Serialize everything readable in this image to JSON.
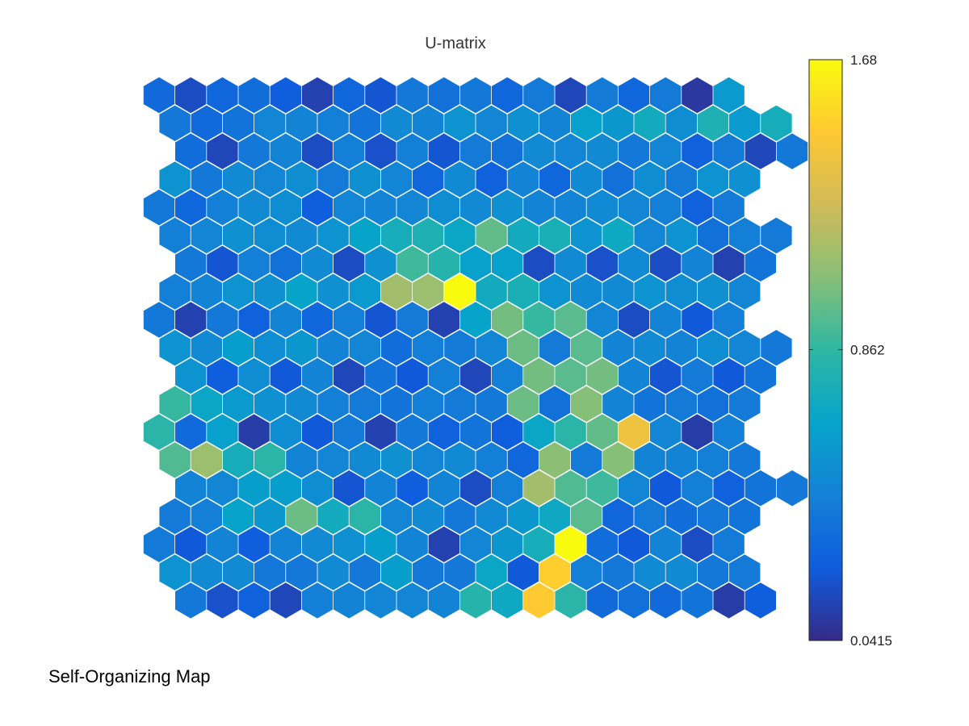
{
  "footer": {
    "title": "Self-Organizing Map"
  },
  "colormap": [
    "#352a87",
    "#0f5cdd",
    "#1481d6",
    "#06a4ca",
    "#2eb7a4",
    "#87bf77",
    "#d1bb59",
    "#fec832",
    "#f9fb0e"
  ],
  "chart_data": {
    "type": "heatmap",
    "title": "U-matrix",
    "grid": false,
    "layout": "hexagonal",
    "rows": 19,
    "cols": 20,
    "colorbar": {
      "position": "right",
      "min": 0.0415,
      "max": 1.68,
      "ticks": [
        {
          "value": 0.0415,
          "label": "0.0415"
        },
        {
          "value": 0.862,
          "label": "0.862"
        },
        {
          "value": 1.68,
          "label": "1.68"
        }
      ]
    },
    "values": [
      [
        0.32,
        0.18,
        0.3,
        0.34,
        0.26,
        0.14,
        0.3,
        0.22,
        0.4,
        0.36,
        0.4,
        0.3,
        0.42,
        0.16,
        0.42,
        0.3,
        0.42,
        0.1,
        0.6,
        null
      ],
      [
        0.4,
        0.32,
        0.38,
        0.48,
        0.46,
        0.44,
        0.38,
        0.5,
        0.46,
        0.56,
        0.48,
        0.54,
        0.46,
        0.64,
        0.58,
        0.72,
        0.52,
        0.78,
        0.6,
        0.74
      ],
      [
        0.34,
        0.16,
        0.4,
        0.46,
        0.18,
        0.44,
        0.2,
        0.44,
        0.22,
        0.42,
        0.36,
        0.5,
        0.48,
        0.5,
        0.4,
        0.48,
        0.28,
        0.42,
        0.16,
        0.4
      ],
      [
        0.56,
        0.4,
        0.5,
        0.48,
        0.52,
        0.42,
        0.54,
        0.48,
        0.3,
        0.5,
        0.28,
        0.46,
        0.3,
        0.5,
        0.36,
        0.52,
        0.42,
        0.56,
        0.54,
        null
      ],
      [
        0.4,
        0.3,
        0.44,
        0.5,
        0.52,
        0.26,
        0.48,
        0.46,
        0.48,
        0.52,
        0.5,
        0.54,
        0.46,
        0.46,
        0.5,
        0.48,
        0.44,
        0.28,
        0.42,
        null
      ],
      [
        0.44,
        0.48,
        0.54,
        0.52,
        0.5,
        0.56,
        0.66,
        0.74,
        0.78,
        0.68,
        0.98,
        0.72,
        0.76,
        0.56,
        0.7,
        0.48,
        0.56,
        0.36,
        0.44,
        0.42
      ],
      [
        0.4,
        0.22,
        0.44,
        0.36,
        0.5,
        0.18,
        0.54,
        0.9,
        0.82,
        0.64,
        0.64,
        0.18,
        0.5,
        0.2,
        0.5,
        0.18,
        0.46,
        0.14,
        0.38,
        null
      ],
      [
        0.44,
        0.46,
        0.56,
        0.54,
        0.66,
        0.54,
        0.6,
        1.14,
        1.12,
        1.68,
        0.72,
        0.76,
        0.56,
        0.5,
        0.5,
        0.56,
        0.52,
        0.54,
        0.48,
        null
      ],
      [
        0.4,
        0.14,
        0.4,
        0.28,
        0.46,
        0.3,
        0.44,
        0.22,
        0.42,
        0.14,
        0.66,
        1.02,
        0.88,
        0.96,
        0.48,
        0.18,
        0.46,
        0.24,
        0.44,
        null
      ],
      [
        0.56,
        0.5,
        0.62,
        0.52,
        0.58,
        0.46,
        0.48,
        0.34,
        0.44,
        0.42,
        0.48,
        1.0,
        0.42,
        0.96,
        0.46,
        0.5,
        0.46,
        0.52,
        0.48,
        0.4
      ],
      [
        0.56,
        0.26,
        0.52,
        0.24,
        0.46,
        0.16,
        0.38,
        0.24,
        0.44,
        0.16,
        0.44,
        1.02,
        0.96,
        1.02,
        0.46,
        0.22,
        0.42,
        0.24,
        0.38,
        null
      ],
      [
        0.88,
        0.68,
        0.6,
        0.54,
        0.5,
        0.44,
        0.42,
        0.38,
        0.44,
        0.42,
        0.4,
        1.0,
        0.36,
        1.06,
        0.46,
        0.38,
        0.42,
        0.36,
        0.42,
        null
      ],
      [
        0.84,
        0.32,
        0.64,
        0.12,
        0.52,
        0.24,
        0.42,
        0.14,
        0.4,
        0.28,
        0.38,
        0.26,
        0.68,
        0.84,
        0.98,
        1.4,
        0.48,
        0.12,
        0.44,
        null
      ],
      [
        0.94,
        1.12,
        0.74,
        0.84,
        0.46,
        0.48,
        0.5,
        0.54,
        0.48,
        0.5,
        0.44,
        0.3,
        1.08,
        0.42,
        1.06,
        0.46,
        0.46,
        0.44,
        0.4,
        null
      ],
      [
        0.46,
        0.48,
        0.62,
        0.62,
        0.52,
        0.22,
        0.46,
        0.26,
        0.46,
        0.18,
        0.44,
        1.14,
        0.94,
        0.9,
        0.48,
        0.24,
        0.44,
        0.28,
        0.38,
        0.4
      ],
      [
        0.42,
        0.44,
        0.66,
        0.58,
        1.0,
        0.72,
        0.84,
        0.48,
        0.5,
        0.4,
        0.5,
        0.58,
        0.7,
        0.96,
        0.3,
        0.42,
        0.34,
        0.4,
        0.38,
        null
      ],
      [
        0.42,
        0.24,
        0.46,
        0.26,
        0.46,
        0.5,
        0.54,
        0.62,
        0.46,
        0.14,
        0.48,
        0.58,
        0.74,
        1.68,
        0.34,
        0.24,
        0.46,
        0.18,
        0.42,
        null
      ],
      [
        0.56,
        0.5,
        0.5,
        0.4,
        0.4,
        0.5,
        0.4,
        0.62,
        0.4,
        0.4,
        0.68,
        0.24,
        1.5,
        0.44,
        0.4,
        0.5,
        0.5,
        0.4,
        0.42,
        null
      ],
      [
        0.4,
        0.2,
        0.28,
        0.16,
        0.44,
        0.46,
        0.48,
        0.48,
        0.46,
        0.82,
        0.7,
        1.48,
        0.84,
        0.32,
        0.36,
        0.32,
        0.38,
        0.12,
        0.26,
        null
      ]
    ]
  }
}
